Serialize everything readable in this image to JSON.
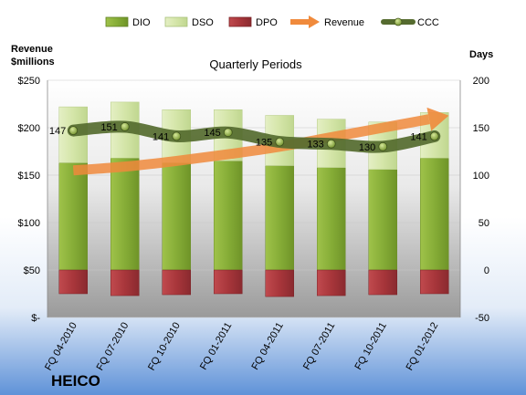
{
  "chart_data": {
    "type": "bar",
    "subtitle": "Quarterly Periods",
    "company": "HEICO",
    "left_axis": {
      "title_line1": "Revenue",
      "title_line2": "$millions",
      "ylim": [
        0,
        250
      ],
      "ticks": [
        "$-",
        "$50",
        "$100",
        "$150",
        "$200",
        "$250"
      ]
    },
    "right_axis": {
      "title": "Days",
      "ylim": [
        -50,
        200
      ],
      "ticks": [
        "-50",
        "0",
        "50",
        "100",
        "150",
        "200"
      ]
    },
    "categories": [
      "FQ 04-2010",
      "FQ 07-2010",
      "FQ 10-2010",
      "FQ 01-2011",
      "FQ 04-2011",
      "FQ 07-2011",
      "FQ 10-2011",
      "FQ 01-2012"
    ],
    "legend": [
      "DIO",
      "DSO",
      "DPO",
      "Revenue",
      "CCC"
    ],
    "series": [
      {
        "name": "DIO",
        "axis": "right",
        "values": [
          113,
          118,
          113,
          115,
          110,
          108,
          106,
          118
        ]
      },
      {
        "name": "DSO",
        "axis": "right",
        "values": [
          59,
          59,
          56,
          54,
          53,
          51,
          50,
          48
        ]
      },
      {
        "name": "DPO",
        "axis": "right",
        "values": [
          -25,
          -27,
          -26,
          -25,
          -28,
          -27,
          -26,
          -25
        ]
      },
      {
        "name": "Revenue",
        "axis": "left",
        "values": [
          155,
          159,
          165,
          172,
          180,
          190,
          200,
          210
        ]
      },
      {
        "name": "CCC",
        "axis": "right",
        "values": [
          147,
          151,
          141,
          145,
          135,
          133,
          130,
          141
        ]
      }
    ],
    "ccc_labels": [
      "147",
      "151",
      "141",
      "145",
      "135",
      "133",
      "130",
      "141"
    ],
    "colors": {
      "dio": "#8db33c",
      "dso": "#d6e6ae",
      "dpo": "#b03a3f",
      "revenue": "#f08a3c",
      "ccc": "#556b2f",
      "ccc_marker": "#8aa83a"
    }
  }
}
